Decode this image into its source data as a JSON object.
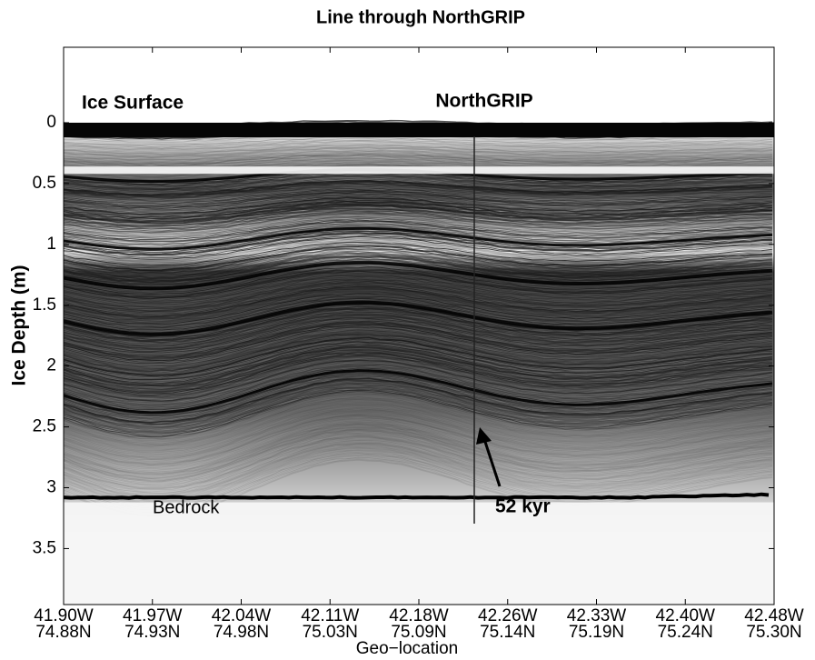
{
  "chart_data": {
    "type": "radargram",
    "title": "Line through NorthGRIP",
    "xlabel": "Geo−location",
    "ylabel": "Ice Depth (m)",
    "ylim": [
      -0.62,
      3.96
    ],
    "y_inverted": true,
    "yticks": [
      0,
      0.5,
      1,
      1.5,
      2,
      2.5,
      3,
      3.5
    ],
    "categories": [
      [
        "41.90W",
        "74.88N"
      ],
      [
        "41.97W",
        "74.93N"
      ],
      [
        "42.04W",
        "74.98N"
      ],
      [
        "42.11W",
        "75.03N"
      ],
      [
        "42.18W",
        "75.09N"
      ],
      [
        "42.26W",
        "75.14N"
      ],
      [
        "42.33W",
        "75.19N"
      ],
      [
        "42.40W",
        "75.24N"
      ],
      [
        "42.48W",
        "75.30N"
      ]
    ],
    "annotations": [
      "Ice Surface",
      "NorthGRIP",
      "Bedrock",
      "52 kyr"
    ]
  }
}
